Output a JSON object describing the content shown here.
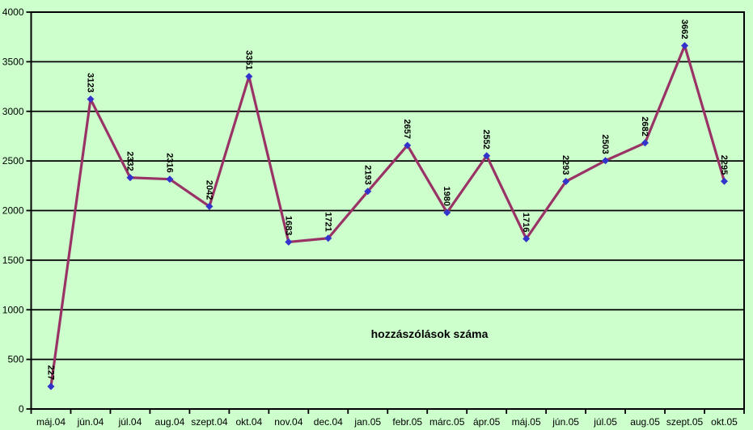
{
  "chart_data": {
    "type": "line",
    "annotation": "hozzászólások száma",
    "categories": [
      "máj.04",
      "jún.04",
      "júl.04",
      "aug.04",
      "szept.04",
      "okt.04",
      "nov.04",
      "dec.04",
      "jan.05",
      "febr.05",
      "márc.05",
      "ápr.05",
      "máj.05",
      "jún.05",
      "júl.05",
      "aug.05",
      "szept.05",
      "okt.05"
    ],
    "values": [
      227,
      3123,
      2332,
      2316,
      2042,
      3351,
      1683,
      1721,
      2193,
      2657,
      1980,
      2552,
      1716,
      2293,
      2503,
      2682,
      3662,
      2295
    ],
    "yticks": [
      0,
      500,
      1000,
      1500,
      2000,
      2500,
      3000,
      3500,
      4000
    ],
    "ylim": [
      0,
      4000
    ],
    "grid": "horizontal",
    "legend_position": "none",
    "data_labels_rotation_deg": 90,
    "colors": {
      "background": "#ccffcc",
      "line": "#993366",
      "marker": "#3333cc",
      "grid": "#000000",
      "text": "#000000"
    }
  }
}
